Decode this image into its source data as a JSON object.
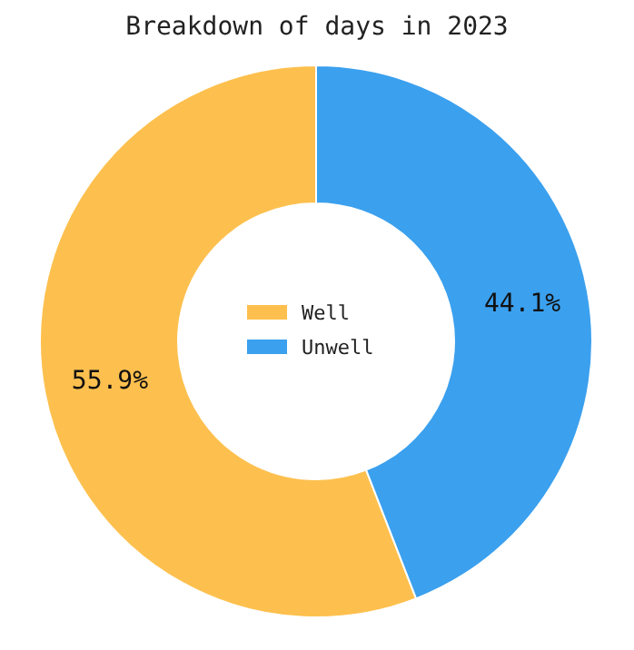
{
  "chart_data": {
    "type": "donut",
    "title": "Breakdown of days in 2023",
    "categories": [
      "Well",
      "Unwell"
    ],
    "values": [
      55.9,
      44.1
    ],
    "colors": [
      "#fdc04e",
      "#3ba0ee"
    ],
    "value_labels": [
      "55.9%",
      "44.1%"
    ],
    "legend": "center"
  }
}
